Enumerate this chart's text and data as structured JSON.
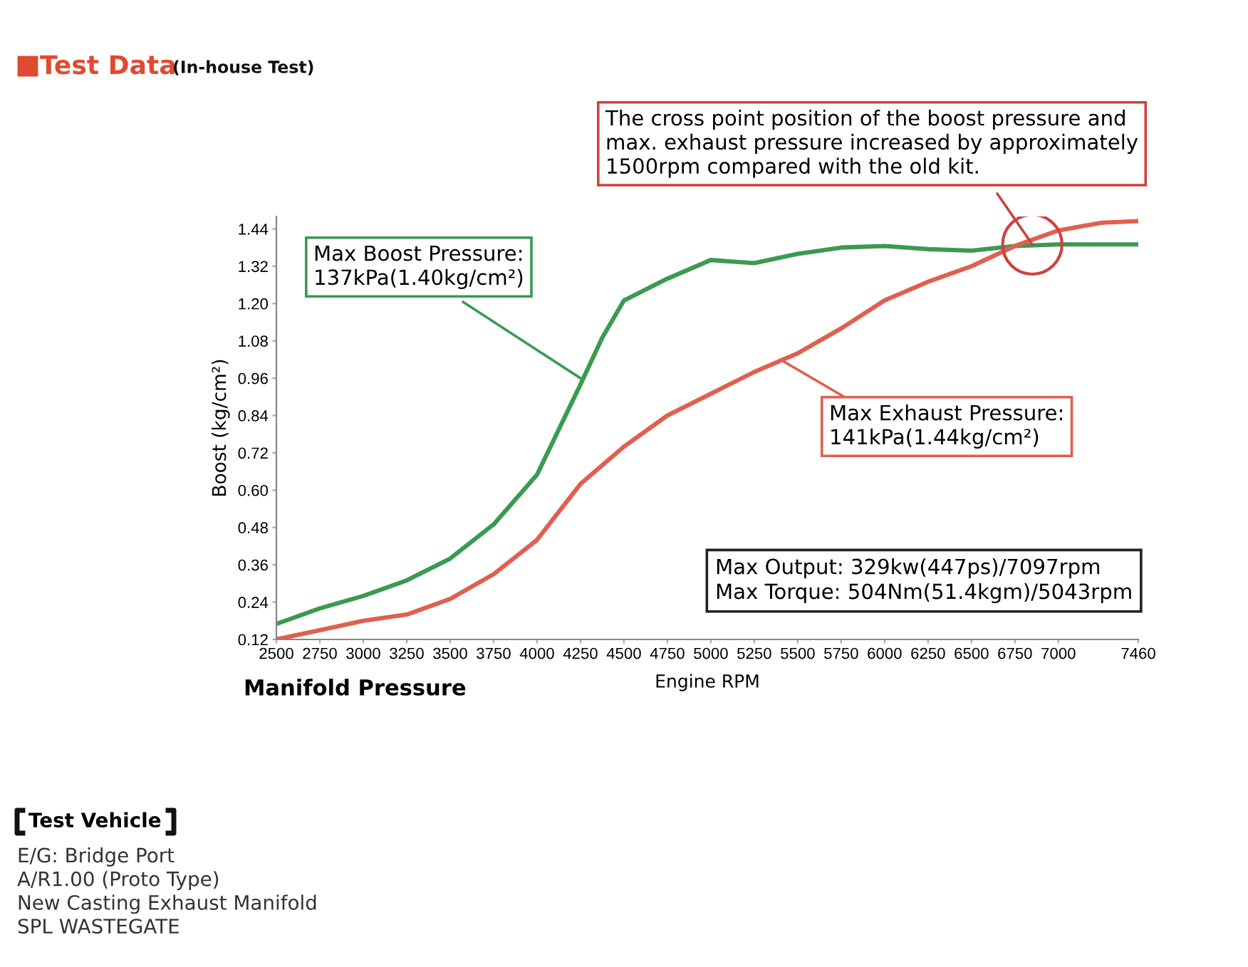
{
  "chart_data": {
    "type": "line",
    "title": "Test Data",
    "subtitle": "(In-house Test)",
    "xlabel": "Engine RPM",
    "ylabel": "Boost (kg/cm²)",
    "x": [
      2500,
      2750,
      3000,
      3250,
      3500,
      3750,
      4000,
      4250,
      4375,
      4500,
      4750,
      5000,
      5250,
      5500,
      5750,
      6000,
      6250,
      6500,
      6750,
      7000,
      7250,
      7460
    ],
    "series": [
      {
        "color": "#3a9a50",
        "values": [
          0.17,
          0.22,
          0.26,
          0.31,
          0.38,
          0.49,
          0.65,
          0.94,
          1.09,
          1.21,
          1.28,
          1.34,
          1.33,
          1.36,
          1.38,
          1.385,
          1.375,
          1.37,
          1.385,
          1.39,
          1.39,
          1.39
        ]
      },
      {
        "color": "#e0604f",
        "values": [
          0.12,
          0.15,
          0.18,
          0.2,
          0.25,
          0.33,
          0.44,
          0.62,
          0.68,
          0.74,
          0.84,
          0.91,
          0.98,
          1.04,
          1.12,
          1.21,
          1.27,
          1.32,
          1.385,
          1.435,
          1.46,
          1.465
        ]
      }
    ],
    "xlim": [
      2500,
      7460
    ],
    "ylim": [
      0.12,
      1.48
    ],
    "xticks": [
      2500,
      2750,
      3000,
      3250,
      3500,
      3750,
      4000,
      4250,
      4500,
      4750,
      5000,
      5250,
      5500,
      5750,
      6000,
      6250,
      6500,
      6750,
      7000,
      7460
    ],
    "yticks": [
      {
        "value": 0.12,
        "label": "0.12"
      },
      {
        "value": 0.24,
        "label": "0.24"
      },
      {
        "value": 0.36,
        "label": "0.36"
      },
      {
        "value": 0.48,
        "label": "0.48"
      },
      {
        "value": 0.6,
        "label": "0.60"
      },
      {
        "value": 0.72,
        "label": "0.72"
      },
      {
        "value": 0.84,
        "label": "0.84"
      },
      {
        "value": 0.96,
        "label": "0.96"
      },
      {
        "value": 1.08,
        "label": "1.08"
      },
      {
        "value": 1.2,
        "label": "1.20"
      },
      {
        "value": 1.32,
        "label": "1.32"
      },
      {
        "value": 1.44,
        "label": "1.44"
      }
    ],
    "grid": false,
    "legend": false,
    "annotations": [
      {
        "text": "The cross point position of the boost pressure and\nmax. exhaust pressure increased by approximately\n1500rpm compared with the old kit.",
        "x": 6850,
        "y": 1.39
      },
      {
        "text": "Max Boost Pressure:\n137kPa(1.40kg/cm²)",
        "x": 4250,
        "y": 0.96
      },
      {
        "text": "Max Exhaust Pressure:\n141kPa(1.44kg/cm²)",
        "x": 5400,
        "y": 1.02
      },
      "Max Output: 329kw(447ps)/7097rpm\nMax Torque: 504Nm(51.4kgm)/5043rpm",
      "Manifold Pressure",
      "Test Vehicle",
      "E/G: Bridge Port\nA/R1.00 (Proto Type)\nNew Casting Exhaust Manifold\nSPL WASTEGATE"
    ]
  }
}
